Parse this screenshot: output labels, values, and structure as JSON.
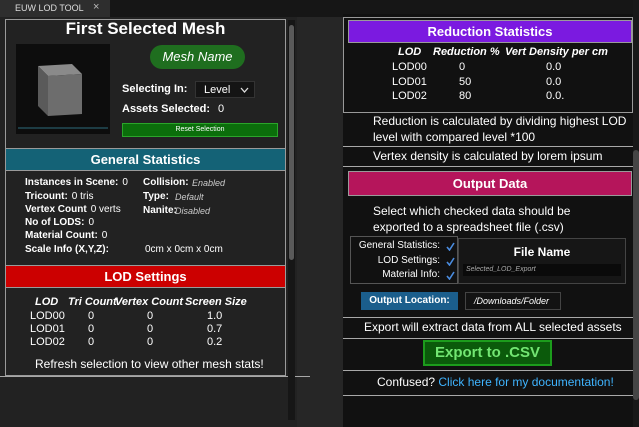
{
  "tab": {
    "title": "EUW LOD TOOL",
    "close": "×"
  },
  "mesh_panel": {
    "title": "First Selected Mesh",
    "mesh_name": "Mesh Name",
    "selecting_in_label": "Selecting In:",
    "selecting_in_value": "Level",
    "assets_selected_label": "Assets Selected:",
    "assets_selected_value": "0",
    "reset_button": "Reset Selection"
  },
  "general_statistics": {
    "title": "General Statistics",
    "items": [
      {
        "label": "Instances in Scene:",
        "value": "0"
      },
      {
        "label": "Tricount:",
        "value": "0 tris"
      },
      {
        "label": "Vertex Count",
        "value": "0 verts"
      },
      {
        "label": "No of LODS:",
        "value": "0"
      },
      {
        "label": "Material Count:",
        "value": "0"
      },
      {
        "label": "Scale Info (X,Y,Z):",
        "value": "0cm x 0cm x 0cm"
      }
    ],
    "flags": [
      {
        "label": "Collision:",
        "value": "Enabled"
      },
      {
        "label": "Type:",
        "value": "Default"
      },
      {
        "label": "Nanite:",
        "value": "Disabled"
      }
    ]
  },
  "lod_settings": {
    "title": "LOD Settings",
    "columns": [
      "LOD",
      "Tri Count",
      "Vertex Count",
      "Screen Size"
    ],
    "rows": [
      [
        "LOD00",
        "0",
        "0",
        "1.0"
      ],
      [
        "LOD01",
        "0",
        "0",
        "0.7"
      ],
      [
        "LOD02",
        "0",
        "0",
        "0.2"
      ]
    ],
    "footer": "Refresh selection to view other mesh stats!"
  },
  "reduction_statistics": {
    "title": "Reduction Statistics",
    "columns": [
      "LOD",
      "Reduction %",
      "Vert Density per cm"
    ],
    "rows": [
      [
        "LOD00",
        "0",
        "0.0"
      ],
      [
        "LOD01",
        "50",
        "0.0"
      ],
      [
        "LOD02",
        "80",
        "0.0."
      ]
    ],
    "notes": [
      "Reduction is calculated by dividing highest LOD level with compared level *100",
      "Vertex density is calculated by lorem ipsum"
    ]
  },
  "output_data": {
    "title": "Output Data",
    "description": "Select which checked data should be exported to a spreadsheet file (.csv)",
    "options": [
      "General Statistics:",
      "LOD Settings:",
      "Material Info:"
    ],
    "file_name_label": "File Name",
    "file_name_value": "Selected_LOD_Export",
    "output_location_button": "Output Location:",
    "output_location_value": "/Downloads/Folder",
    "export_note": "Export will extract data from ALL selected assets",
    "export_button": "Export to .CSV",
    "help_prefix": "Confused?",
    "help_link": "Click here for my documentation!"
  }
}
